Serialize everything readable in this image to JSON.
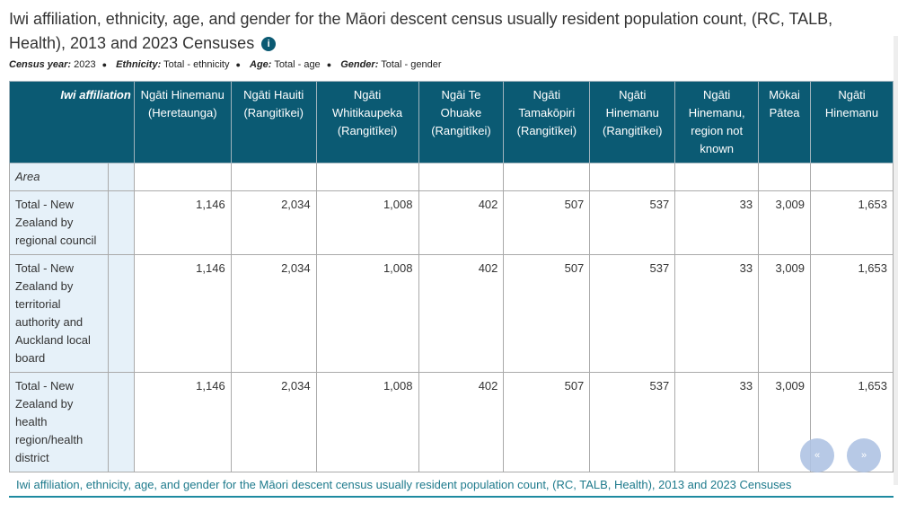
{
  "title": "Iwi affiliation, ethnicity, age, and gender for the Māori descent census usually resident population count, (RC, TALB, Health), 2013 and 2023 Censuses",
  "filters": [
    {
      "label": "Census year:",
      "value": "2023"
    },
    {
      "label": "Ethnicity:",
      "value": "Total - ethnicity"
    },
    {
      "label": "Age:",
      "value": "Total - age"
    },
    {
      "label": "Gender:",
      "value": "Total - gender"
    }
  ],
  "table": {
    "corner": "Iwi affiliation",
    "area_label": "Area",
    "columns": [
      "Ngāti Hinemanu (Heretaunga)",
      "Ngāti Hauiti (Rangitīkei)",
      "Ngāti Whitikaupeka (Rangitīkei)",
      "Ngāi Te Ohuake (Rangitīkei)",
      "Ngāti Tamakōpiri (Rangitīkei)",
      "Ngāti Hinemanu (Rangitīkei)",
      "Ngāti Hinemanu, region not known",
      "Mōkai Pātea",
      "Ngāti Hinemanu"
    ],
    "rows": [
      {
        "label": "Total - New Zealand by regional council",
        "values": [
          "1,146",
          "2,034",
          "1,008",
          "402",
          "507",
          "537",
          "33",
          "3,009",
          "1,653"
        ]
      },
      {
        "label": "Total - New Zealand by territorial authority and Auckland local board",
        "values": [
          "1,146",
          "2,034",
          "1,008",
          "402",
          "507",
          "537",
          "33",
          "3,009",
          "1,653"
        ]
      },
      {
        "label": "Total - New Zealand by health region/health district",
        "values": [
          "1,146",
          "2,034",
          "1,008",
          "402",
          "507",
          "537",
          "33",
          "3,009",
          "1,653"
        ]
      }
    ]
  },
  "caption": "Iwi affiliation, ethnicity, age, and gender for the Māori descent census usually resident population count, (RC, TALB, Health), 2013 and 2023 Censuses",
  "buttons": {
    "collapse": "«",
    "top": "»"
  }
}
